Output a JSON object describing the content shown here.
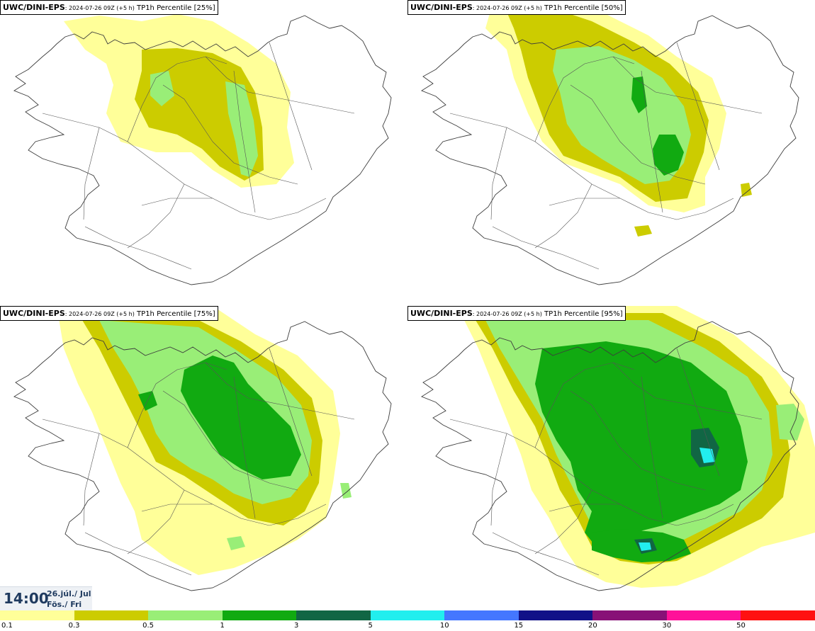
{
  "panels": [
    {
      "source": "UWC/DINI-EPS",
      "run": ": 2024-07-26 09Z (+5 h)",
      "title": " TP1h Percentile [25%]",
      "percentile": 25
    },
    {
      "source": "UWC/DINI-EPS",
      "run": ": 2024-07-26 09Z (+5 h)",
      "title": " TP1h Percentile [50%]",
      "percentile": 50
    },
    {
      "source": "UWC/DINI-EPS",
      "run": ": 2024-07-26 09Z (+5 h)",
      "title": " TP1h Percentile [75%]",
      "percentile": 75
    },
    {
      "source": "UWC/DINI-EPS",
      "run": ": 2024-07-26 09Z (+5 h)",
      "title": " TP1h Percentile [95%]",
      "percentile": 95
    }
  ],
  "time": {
    "time": "14:00",
    "date": "26.júl./ Jul",
    "weekday": "Fös./ Fri"
  },
  "legend": {
    "ticks": [
      "0.1",
      "0.3",
      "0.5",
      "1",
      "3",
      "5",
      "10",
      "15",
      "20",
      "30",
      "50"
    ],
    "colors": [
      "#ffff99",
      "#cccc00",
      "#99ee77",
      "#11aa11",
      "#116644",
      "#22eeee",
      "#4477ff",
      "#111188",
      "#881177",
      "#ff1199",
      "#ff1111"
    ]
  }
}
